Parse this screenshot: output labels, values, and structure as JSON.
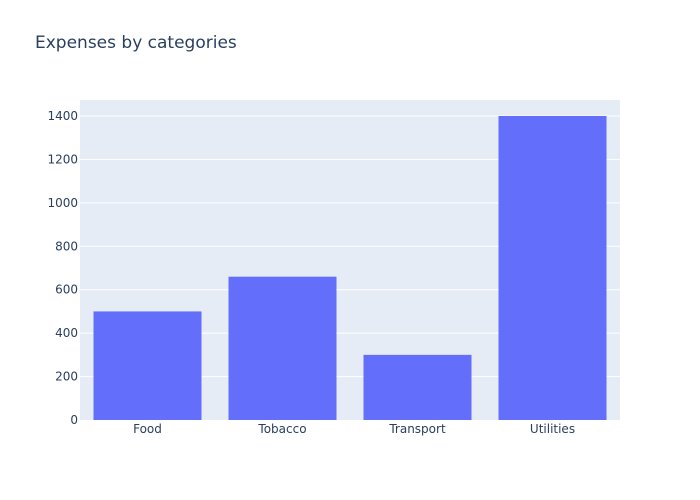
{
  "chart_data": {
    "type": "bar",
    "title": "Expenses by categories",
    "categories": [
      "Food",
      "Tobacco",
      "Transport",
      "Utilities"
    ],
    "values": [
      500,
      660,
      300,
      1400
    ],
    "xlabel": "",
    "ylabel": "",
    "ylim": [
      0,
      1473.7
    ],
    "yticks": [
      0,
      200,
      400,
      600,
      800,
      1000,
      1200,
      1400
    ],
    "grid": true,
    "legend": "none",
    "colors": {
      "bar": "#636efa",
      "plot_background": "#e5ecf6",
      "gridline": "#ffffff",
      "text": "#2a3f5f"
    }
  }
}
